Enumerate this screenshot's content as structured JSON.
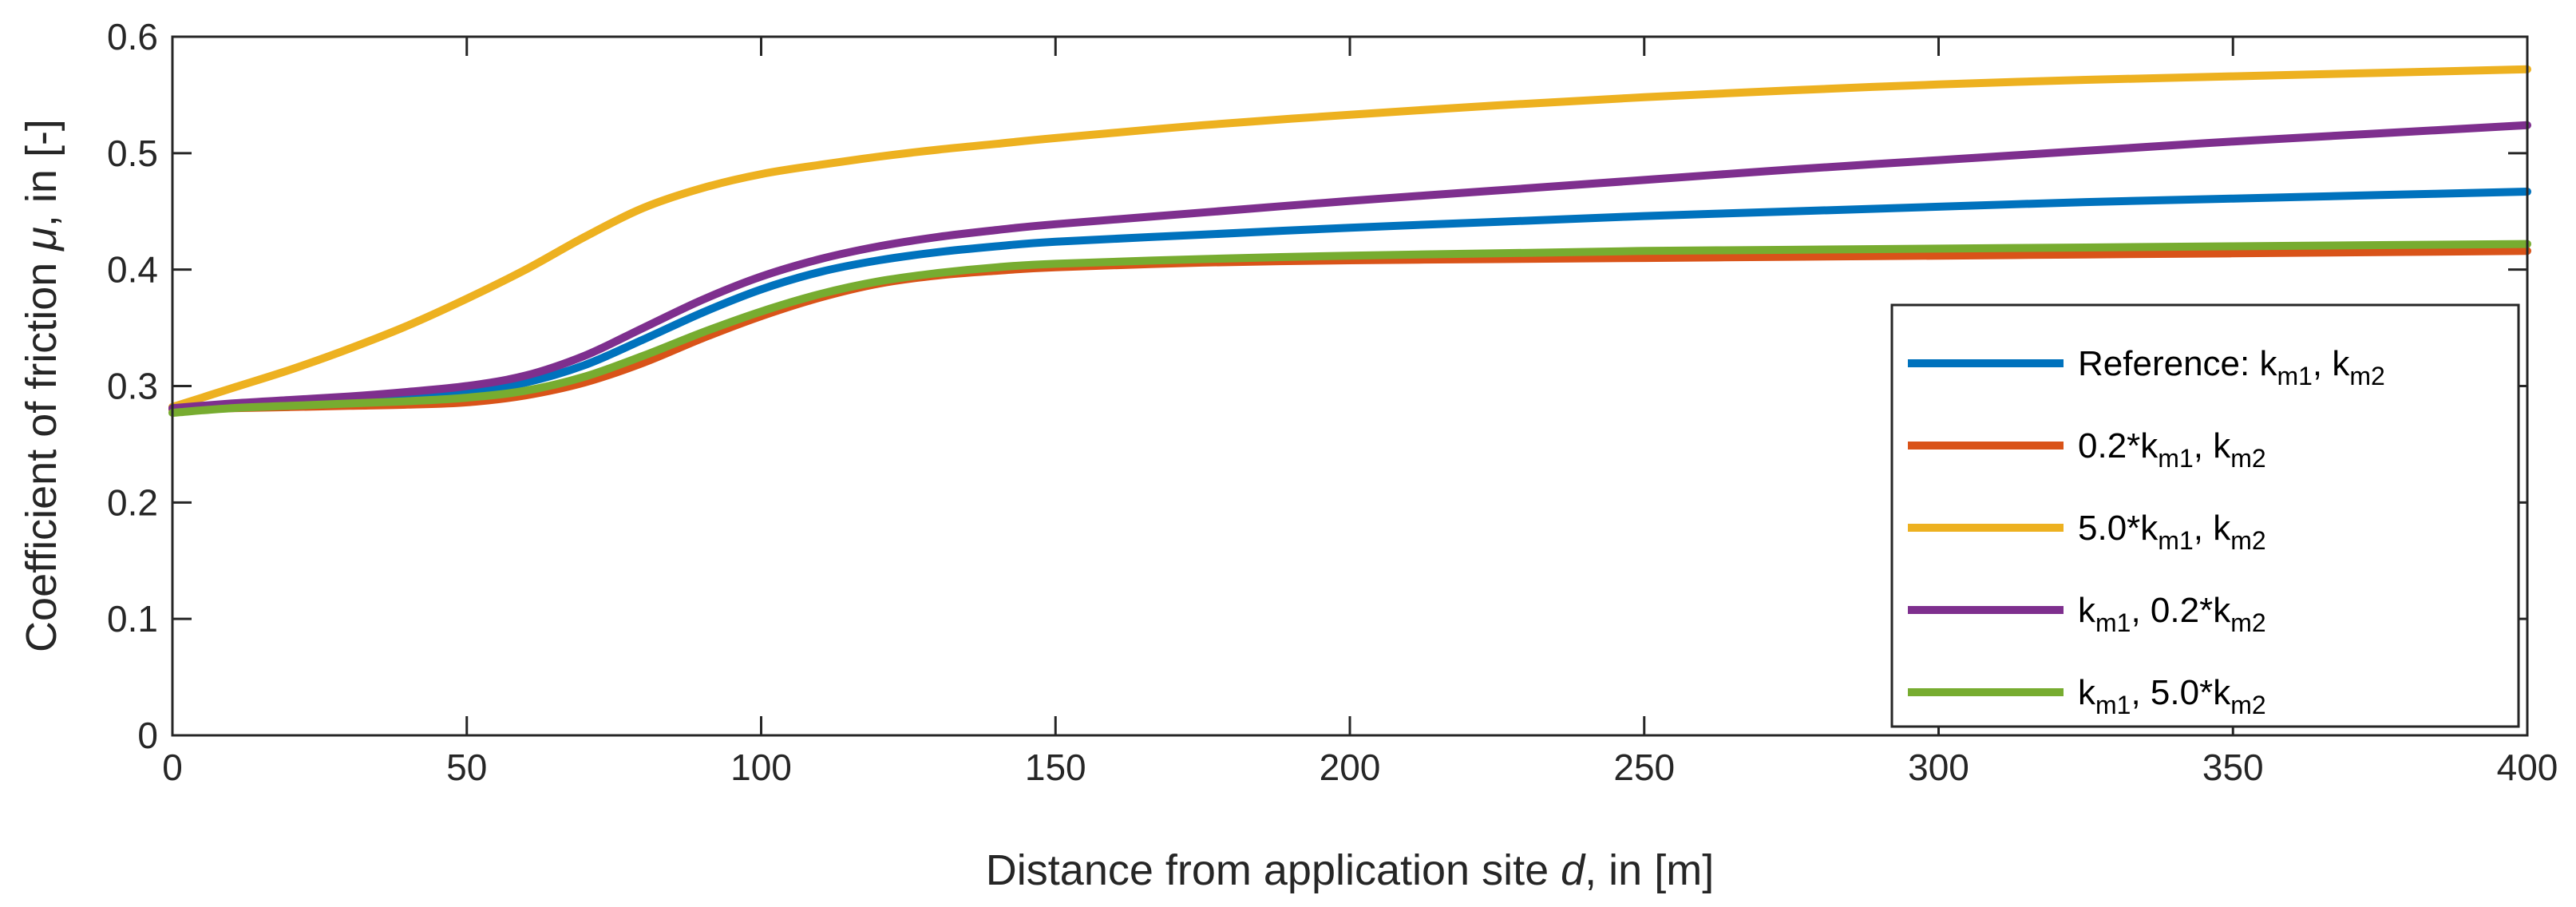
{
  "chart_data": {
    "type": "line",
    "title": "",
    "xlabel": "Distance from application site ",
    "xlabel_var": "d",
    "xlabel_unit": ", in [m]",
    "ylabel": "Coefficient of friction ",
    "ylabel_var": "μ",
    "ylabel_unit": ", in [-]",
    "xlim": [
      0,
      400
    ],
    "ylim": [
      0,
      0.6
    ],
    "x_ticks": [
      0,
      50,
      100,
      150,
      200,
      250,
      300,
      350,
      400
    ],
    "x_tick_labels": [
      "0",
      "50",
      "100",
      "150",
      "200",
      "250",
      "300",
      "350",
      "400"
    ],
    "y_ticks": [
      0,
      0.1,
      0.2,
      0.3,
      0.4,
      0.5,
      0.6
    ],
    "y_tick_labels": [
      "0",
      "0.1",
      "0.2",
      "0.3",
      "0.4",
      "0.5",
      "0.6"
    ],
    "grid": false,
    "legend_position": "lower-right",
    "x": [
      0,
      10,
      20,
      30,
      40,
      50,
      60,
      70,
      80,
      90,
      100,
      110,
      120,
      130,
      140,
      150,
      175,
      200,
      225,
      250,
      275,
      300,
      325,
      350,
      375,
      400
    ],
    "series": [
      {
        "name": "Reference: k_m1, k_m2",
        "legend_parts": [
          [
            "Reference: k",
            ""
          ],
          [
            "m1",
            "sub"
          ],
          [
            ", k",
            ""
          ],
          [
            "m2",
            "sub"
          ]
        ],
        "color": "#0072BD",
        "values": [
          0.28,
          0.284,
          0.286,
          0.288,
          0.291,
          0.295,
          0.303,
          0.318,
          0.34,
          0.363,
          0.383,
          0.398,
          0.408,
          0.415,
          0.42,
          0.424,
          0.43,
          0.436,
          0.441,
          0.446,
          0.45,
          0.454,
          0.458,
          0.461,
          0.464,
          0.467
        ]
      },
      {
        "name": "0.2*k_m1, k_m2",
        "legend_parts": [
          [
            "0.2*k",
            ""
          ],
          [
            "m1",
            "sub"
          ],
          [
            ", k",
            ""
          ],
          [
            "m2",
            "sub"
          ]
        ],
        "color": "#D95319",
        "values": [
          0.28,
          0.281,
          0.282,
          0.283,
          0.284,
          0.286,
          0.292,
          0.303,
          0.32,
          0.341,
          0.36,
          0.376,
          0.388,
          0.395,
          0.399,
          0.402,
          0.406,
          0.408,
          0.409,
          0.41,
          0.411,
          0.412,
          0.413,
          0.414,
          0.415,
          0.416
        ]
      },
      {
        "name": "5.0*k_m1, k_m2",
        "legend_parts": [
          [
            "5.0*k",
            ""
          ],
          [
            "m1",
            "sub"
          ],
          [
            ", k",
            ""
          ],
          [
            "m2",
            "sub"
          ]
        ],
        "color": "#EDB120",
        "values": [
          0.282,
          0.298,
          0.314,
          0.332,
          0.352,
          0.375,
          0.4,
          0.428,
          0.453,
          0.47,
          0.482,
          0.49,
          0.497,
          0.503,
          0.508,
          0.513,
          0.524,
          0.533,
          0.541,
          0.548,
          0.554,
          0.559,
          0.563,
          0.566,
          0.569,
          0.572
        ]
      },
      {
        "name": "k_m1, 0.2*k_m2",
        "legend_parts": [
          [
            "k",
            ""
          ],
          [
            "m1",
            "sub"
          ],
          [
            ", 0.2*k",
            ""
          ],
          [
            "m2",
            "sub"
          ]
        ],
        "color": "#7E2F8E",
        "values": [
          0.281,
          0.285,
          0.288,
          0.291,
          0.295,
          0.3,
          0.309,
          0.326,
          0.35,
          0.374,
          0.394,
          0.409,
          0.42,
          0.428,
          0.434,
          0.439,
          0.449,
          0.459,
          0.468,
          0.477,
          0.486,
          0.494,
          0.502,
          0.51,
          0.517,
          0.524
        ]
      },
      {
        "name": "k_m1, 5.0*k_m2",
        "legend_parts": [
          [
            "k",
            ""
          ],
          [
            "m1",
            "sub"
          ],
          [
            ", 5.0*k",
            ""
          ],
          [
            "m2",
            "sub"
          ]
        ],
        "color": "#77AC30",
        "values": [
          0.277,
          0.281,
          0.283,
          0.285,
          0.287,
          0.29,
          0.296,
          0.308,
          0.326,
          0.346,
          0.364,
          0.379,
          0.39,
          0.397,
          0.402,
          0.405,
          0.409,
          0.412,
          0.414,
          0.416,
          0.417,
          0.418,
          0.419,
          0.42,
          0.421,
          0.422
        ]
      }
    ]
  }
}
